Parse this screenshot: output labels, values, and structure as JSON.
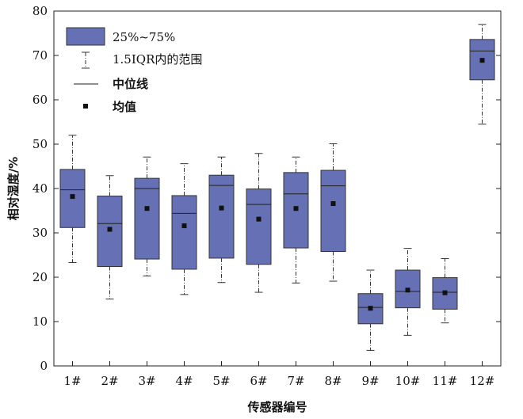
{
  "chart_data": {
    "type": "box",
    "xlabel": "传感器编号",
    "ylabel": "相对湿度/%",
    "ylim": [
      0,
      80
    ],
    "yticks": [
      0,
      10,
      20,
      30,
      40,
      50,
      60,
      70,
      80
    ],
    "categories": [
      "1#",
      "2#",
      "3#",
      "4#",
      "5#",
      "6#",
      "7#",
      "8#",
      "9#",
      "10#",
      "11#",
      "12#"
    ],
    "box_color": "#6670b4",
    "series": [
      {
        "stats": [
          {
            "whisker_low": 23.3,
            "q1": 31.2,
            "median": 39.7,
            "q3": 44.3,
            "whisker_high": 52.0,
            "mean": 38.2
          },
          {
            "whisker_low": 15.1,
            "q1": 22.4,
            "median": 32.1,
            "q3": 38.3,
            "whisker_high": 42.9,
            "mean": 30.8
          },
          {
            "whisker_low": 20.3,
            "q1": 24.1,
            "median": 40.0,
            "q3": 42.3,
            "whisker_high": 47.1,
            "mean": 35.5
          },
          {
            "whisker_low": 16.1,
            "q1": 21.8,
            "median": 34.4,
            "q3": 38.4,
            "whisker_high": 45.6,
            "mean": 31.6
          },
          {
            "whisker_low": 18.8,
            "q1": 24.3,
            "median": 40.7,
            "q3": 43.0,
            "whisker_high": 47.1,
            "mean": 35.6
          },
          {
            "whisker_low": 16.6,
            "q1": 22.9,
            "median": 36.4,
            "q3": 39.9,
            "whisker_high": 47.9,
            "mean": 33.1
          },
          {
            "whisker_low": 18.7,
            "q1": 26.6,
            "median": 38.8,
            "q3": 43.6,
            "whisker_high": 47.1,
            "mean": 35.5
          },
          {
            "whisker_low": 19.1,
            "q1": 25.8,
            "median": 40.6,
            "q3": 44.1,
            "whisker_high": 50.1,
            "mean": 36.6
          },
          {
            "whisker_low": 3.5,
            "q1": 9.5,
            "median": 13.2,
            "q3": 16.3,
            "whisker_high": 21.6,
            "mean": 13.0
          },
          {
            "whisker_low": 6.9,
            "q1": 13.1,
            "median": 16.8,
            "q3": 21.6,
            "whisker_high": 26.5,
            "mean": 17.1
          },
          {
            "whisker_low": 9.7,
            "q1": 12.8,
            "median": 16.6,
            "q3": 19.9,
            "whisker_high": 24.2,
            "mean": 16.5
          },
          {
            "whisker_low": 54.5,
            "q1": 64.5,
            "median": 71.0,
            "q3": 73.6,
            "whisker_high": 77.0,
            "mean": 68.9
          }
        ]
      }
    ],
    "legend": {
      "placement": "top-left",
      "entries": [
        "25%~75%",
        "1.5IQR内的范围",
        "中位线",
        "均值"
      ]
    }
  }
}
